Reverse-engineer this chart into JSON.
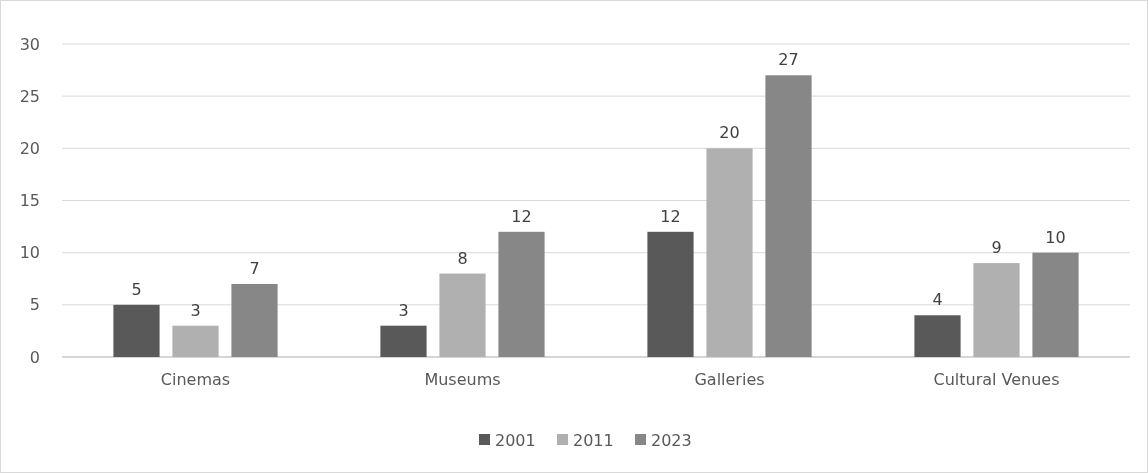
{
  "chart_data": {
    "type": "bar",
    "categories": [
      "Cinemas",
      "Museums",
      "Galleries",
      "Cultural Venues"
    ],
    "series": [
      {
        "name": "2001",
        "color": "#595959",
        "values": [
          5,
          3,
          12,
          4
        ]
      },
      {
        "name": "2011",
        "color": "#b0b0b0",
        "values": [
          3,
          8,
          20,
          9
        ]
      },
      {
        "name": "2023",
        "color": "#878787",
        "values": [
          7,
          12,
          27,
          10
        ]
      }
    ],
    "ylim": [
      0,
      30
    ],
    "yticks": [
      0,
      5,
      10,
      15,
      20,
      25,
      30
    ],
    "grid": "y",
    "legend": "bottom",
    "data_labels": true
  }
}
